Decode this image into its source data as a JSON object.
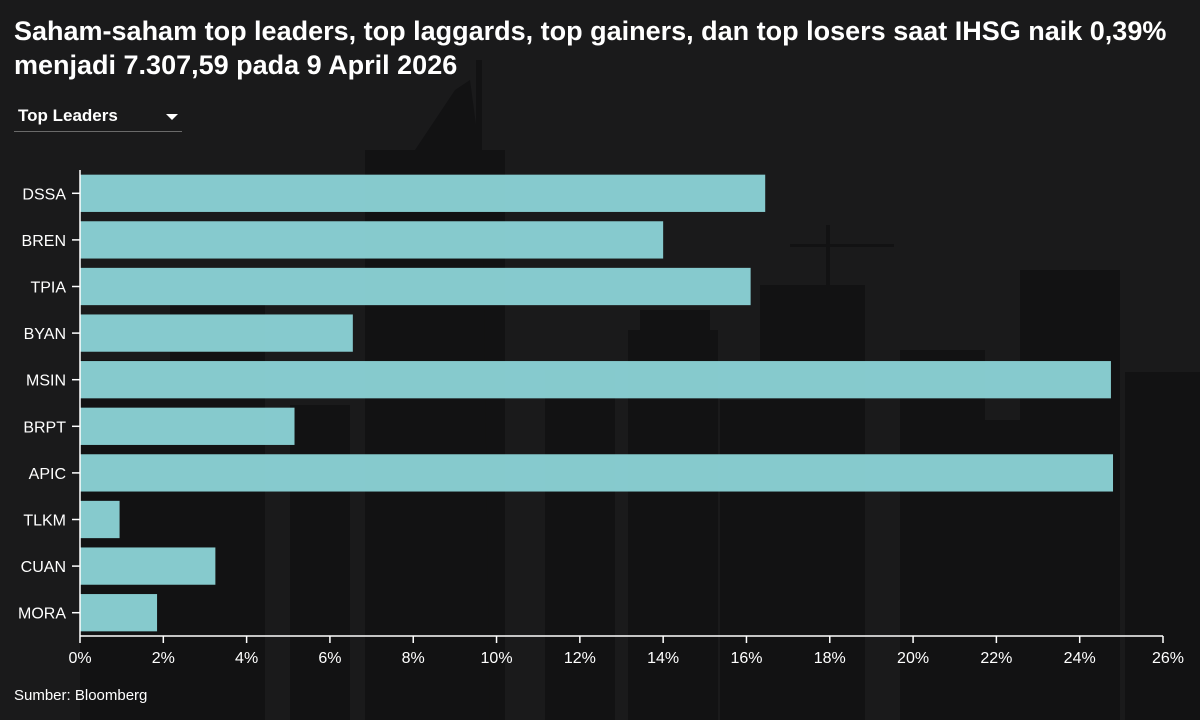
{
  "title": "Saham-saham top leaders, top laggards, top gainers, dan top losers saat IHSG naik 0,39% menjadi 7.307,59 pada 9 April 2026",
  "dropdown": {
    "selected": "Top Leaders"
  },
  "source": "Sumber: Bloomberg",
  "colors": {
    "bar": "#8fd8db",
    "axis": "#ffffff",
    "background": "#1a1a1b"
  },
  "chart_data": {
    "type": "bar",
    "orientation": "horizontal",
    "categories": [
      "DSSA",
      "BREN",
      "TPIA",
      "BYAN",
      "MSIN",
      "BRPT",
      "APIC",
      "TLKM",
      "CUAN",
      "MORA"
    ],
    "values": [
      16.45,
      14.0,
      16.1,
      6.55,
      24.75,
      5.15,
      24.8,
      0.95,
      3.25,
      1.85
    ],
    "xlim": [
      0,
      26
    ],
    "xticks": [
      0,
      2,
      4,
      6,
      8,
      10,
      12,
      14,
      16,
      18,
      20,
      22,
      24,
      26
    ],
    "xtick_labels": [
      "0%",
      "2%",
      "4%",
      "6%",
      "8%",
      "10%",
      "12%",
      "14%",
      "16%",
      "18%",
      "20%",
      "22%",
      "24%",
      "26%"
    ],
    "xlabel": "",
    "ylabel": "",
    "grid": false,
    "legend": "none"
  }
}
